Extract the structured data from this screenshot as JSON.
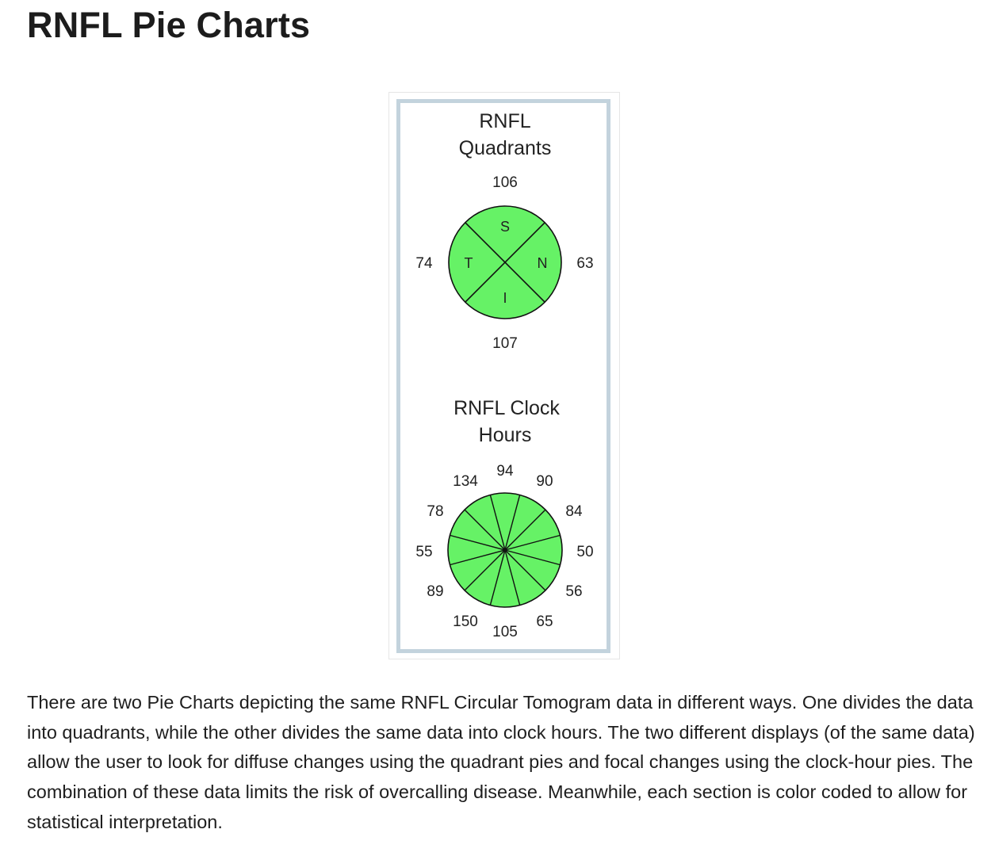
{
  "page": {
    "title": "RNFL Pie Charts",
    "paragraph": "There are two Pie Charts depicting the same RNFL Circular Tomogram data in different ways. One divides the data into quadrants, while the other divides the same data into clock hours. The two different displays (of the same data) allow the user to look for diffuse changes using the quadrant pies and focal changes using the clock-hour pies. The combination of these data limits the risk of overcalling disease. Meanwhile, each section is color coded to allow for statistical interpretation."
  },
  "figure": {
    "colors": {
      "frame": "#c3d3dd",
      "pie_fill": "#66f266",
      "pie_stroke": "#111111"
    },
    "quadrants": {
      "title_line1": "RNFL",
      "title_line2": "Quadrants",
      "sections": [
        {
          "letter": "S",
          "value": "106"
        },
        {
          "letter": "N",
          "value": "63"
        },
        {
          "letter": "I",
          "value": "107"
        },
        {
          "letter": "T",
          "value": "74"
        }
      ]
    },
    "clock_hours": {
      "title_line1": "RNFL  Clock",
      "title_line2": "Hours",
      "values": [
        "94",
        "90",
        "84",
        "50",
        "56",
        "65",
        "105",
        "150",
        "89",
        "55",
        "78",
        "134"
      ]
    }
  }
}
